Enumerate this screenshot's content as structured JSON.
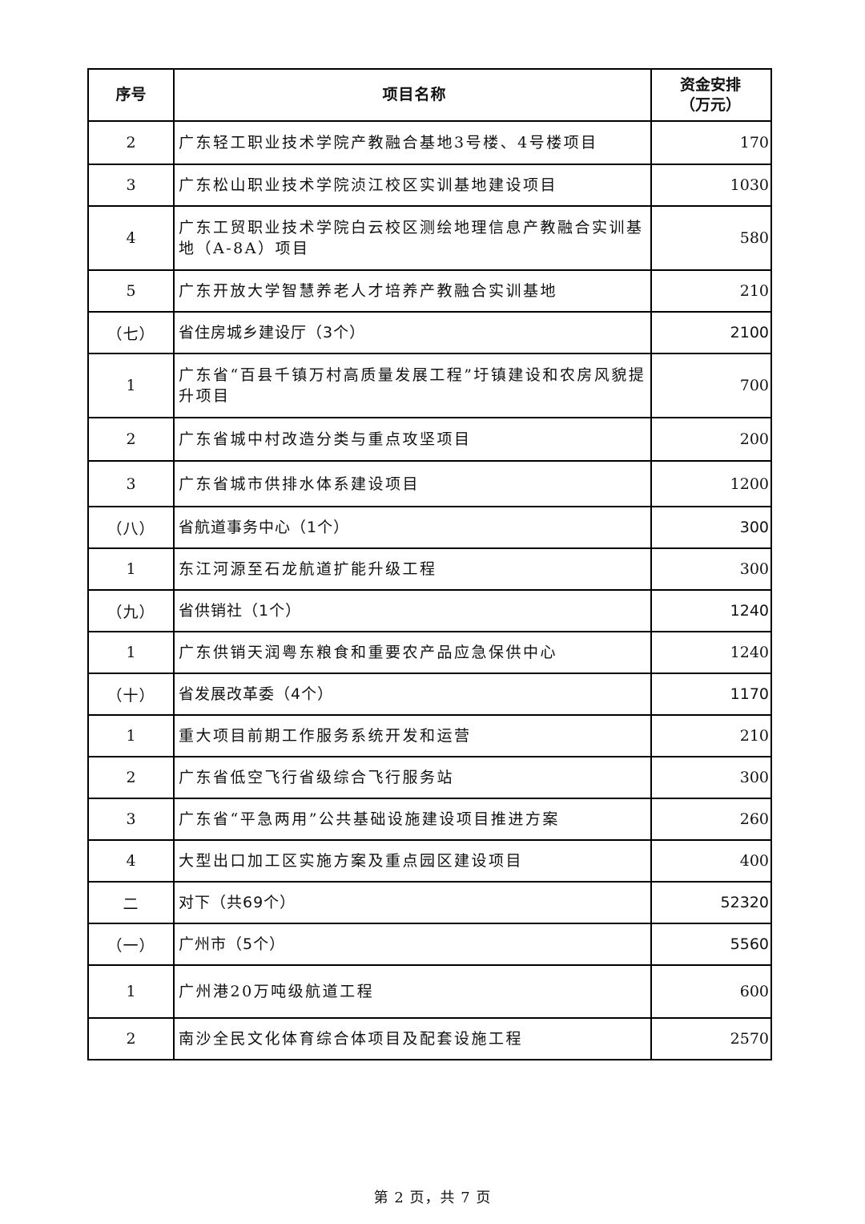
{
  "table": {
    "headers": [
      "序号",
      "项目名称",
      "资金安排\n（万元）"
    ],
    "rows": [
      {
        "no": "2",
        "name": "广东轻工职业技术学院产教融合基地3号楼、4号楼项目",
        "amount": "170",
        "kind": "item"
      },
      {
        "no": "3",
        "name": "广东松山职业技术学院浈江校区实训基地建设项目",
        "amount": "1030",
        "kind": "item"
      },
      {
        "no": "4",
        "name": "广东工贸职业技术学院白云校区测绘地理信息产教融合实训基地（A-8A）项目",
        "amount": "580",
        "kind": "item"
      },
      {
        "no": "5",
        "name": "广东开放大学智慧养老人才培养产教融合实训基地",
        "amount": "210",
        "kind": "item"
      },
      {
        "no": "（七）",
        "name": "省住房城乡建设厅（3个）",
        "amount": "2100",
        "kind": "group"
      },
      {
        "no": "1",
        "name": "广东省“百县千镇万村高质量发展工程”圩镇建设和农房风貌提升项目",
        "amount": "700",
        "kind": "item"
      },
      {
        "no": "2",
        "name": "广东省城中村改造分类与重点攻坚项目",
        "amount": "200",
        "kind": "item"
      },
      {
        "no": "3",
        "name": "广东省城市供排水体系建设项目",
        "amount": "1200",
        "kind": "item"
      },
      {
        "no": "（八）",
        "name": "省航道事务中心（1个）",
        "amount": "300",
        "kind": "group"
      },
      {
        "no": "1",
        "name": "东江河源至石龙航道扩能升级工程",
        "amount": "300",
        "kind": "item"
      },
      {
        "no": "（九）",
        "name": "省供销社（1个）",
        "amount": "1240",
        "kind": "group"
      },
      {
        "no": "1",
        "name": "广东供销天润粤东粮食和重要农产品应急保供中心",
        "amount": "1240",
        "kind": "item"
      },
      {
        "no": "（十）",
        "name": "省发展改革委（4个）",
        "amount": "1170",
        "kind": "group"
      },
      {
        "no": "1",
        "name": "重大项目前期工作服务系统开发和运营",
        "amount": "210",
        "kind": "item"
      },
      {
        "no": "2",
        "name": "广东省低空飞行省级综合飞行服务站",
        "amount": "300",
        "kind": "item"
      },
      {
        "no": "3",
        "name": "广东省“平急两用”公共基础设施建设项目推进方案",
        "amount": "260",
        "kind": "item"
      },
      {
        "no": "4",
        "name": "大型出口加工区实施方案及重点园区建设项目",
        "amount": "400",
        "kind": "item"
      },
      {
        "no": "二",
        "name": "对下（共69个）",
        "amount": "52320",
        "kind": "group"
      },
      {
        "no": "（一）",
        "name": "广州市（5个）",
        "amount": "5560",
        "kind": "group"
      },
      {
        "no": "1",
        "name": "广州港20万吨级航道工程",
        "amount": "600",
        "kind": "item"
      },
      {
        "no": "2",
        "name": "南沙全民文化体育综合体项目及配套设施工程",
        "amount": "2570",
        "kind": "item"
      }
    ]
  },
  "footer": "第 2 页，共 7 页"
}
